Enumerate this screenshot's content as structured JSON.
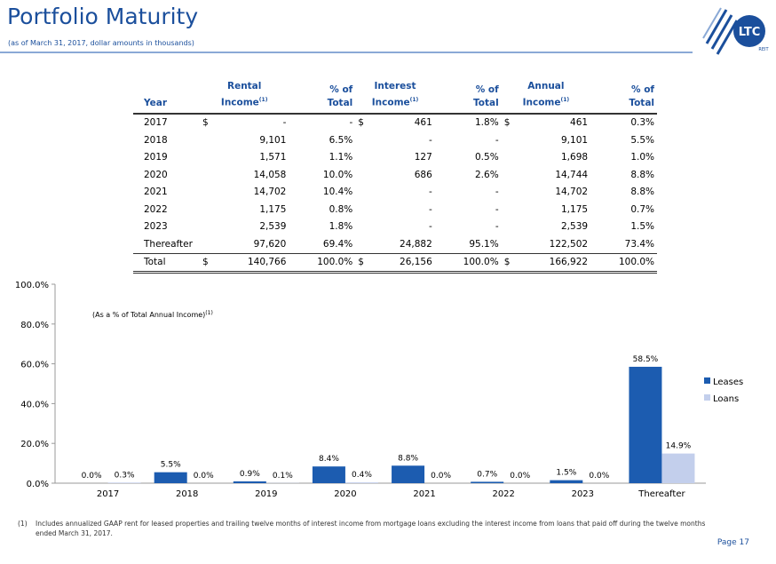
{
  "header": {
    "title": "Portfolio Maturity",
    "subtitle": "(as of March 31, 2017, dollar amounts in thousands)",
    "logo_text": "LTC",
    "logo_subtext": "REIT"
  },
  "table": {
    "headers": {
      "year": "Year",
      "rental": "Rental",
      "rental2": "Income",
      "pct": "% of",
      "pct2": "Total",
      "interest": "Interest",
      "interest2": "Income",
      "annual": "Annual",
      "annual2": "Income",
      "sup": "(1)"
    },
    "rows": [
      {
        "year": "2017",
        "rd": "$",
        "rental": "-",
        "rpct": "-",
        "idol": "$",
        "interest": "461",
        "ipct": "1.8%",
        "adol": "$",
        "annual": "461",
        "apct": "0.3%"
      },
      {
        "year": "2018",
        "rd": "",
        "rental": "9,101",
        "rpct": "6.5%",
        "idol": "",
        "interest": "-",
        "ipct": "-",
        "adol": "",
        "annual": "9,101",
        "apct": "5.5%"
      },
      {
        "year": "2019",
        "rd": "",
        "rental": "1,571",
        "rpct": "1.1%",
        "idol": "",
        "interest": "127",
        "ipct": "0.5%",
        "adol": "",
        "annual": "1,698",
        "apct": "1.0%"
      },
      {
        "year": "2020",
        "rd": "",
        "rental": "14,058",
        "rpct": "10.0%",
        "idol": "",
        "interest": "686",
        "ipct": "2.6%",
        "adol": "",
        "annual": "14,744",
        "apct": "8.8%"
      },
      {
        "year": "2021",
        "rd": "",
        "rental": "14,702",
        "rpct": "10.4%",
        "idol": "",
        "interest": "-",
        "ipct": "-",
        "adol": "",
        "annual": "14,702",
        "apct": "8.8%"
      },
      {
        "year": "2022",
        "rd": "",
        "rental": "1,175",
        "rpct": "0.8%",
        "idol": "",
        "interest": "-",
        "ipct": "-",
        "adol": "",
        "annual": "1,175",
        "apct": "0.7%"
      },
      {
        "year": "2023",
        "rd": "",
        "rental": "2,539",
        "rpct": "1.8%",
        "idol": "",
        "interest": "-",
        "ipct": "-",
        "adol": "",
        "annual": "2,539",
        "apct": "1.5%"
      },
      {
        "year": "Thereafter",
        "rd": "",
        "rental": "97,620",
        "rpct": "69.4%",
        "idol": "",
        "interest": "24,882",
        "ipct": "95.1%",
        "adol": "",
        "annual": "122,502",
        "apct": "73.4%"
      }
    ],
    "total": {
      "year": "Total",
      "rd": "$",
      "rental": "140,766",
      "rpct": "100.0%",
      "idol": "$",
      "interest": "26,156",
      "ipct": "100.0%",
      "adol": "$",
      "annual": "166,922",
      "apct": "100.0%"
    }
  },
  "chart_data": {
    "type": "bar",
    "title": "(As a % of Total Annual Income)",
    "title_sup": "(1)",
    "categories": [
      "2017",
      "2018",
      "2019",
      "2020",
      "2021",
      "2022",
      "2023",
      "Thereafter"
    ],
    "series": [
      {
        "name": "Leases",
        "color": "#1c5cb0",
        "values": [
          0.0,
          5.5,
          0.9,
          8.4,
          8.8,
          0.7,
          1.5,
          58.5
        ],
        "labels": [
          "0.0%",
          "5.5%",
          "0.9%",
          "8.4%",
          "8.8%",
          "0.7%",
          "1.5%",
          "58.5%"
        ]
      },
      {
        "name": "Loans",
        "color": "#c3cfec",
        "values": [
          0.3,
          0.0,
          0.1,
          0.4,
          0.0,
          0.0,
          0.0,
          14.9
        ],
        "labels": [
          "0.3%",
          "0.0%",
          "0.1%",
          "0.4%",
          "0.0%",
          "0.0%",
          "0.0%",
          "14.9%"
        ]
      }
    ],
    "ylim": [
      0,
      100
    ],
    "yticks": [
      0,
      20,
      40,
      60,
      80,
      100
    ],
    "ytick_labels": [
      "0.0%",
      "20.0%",
      "40.0%",
      "60.0%",
      "80.0%",
      "100.0%"
    ],
    "legend": "right"
  },
  "footnote": {
    "mark": "(1)",
    "text": "Includes annualized GAAP rent for leased properties and trailing twelve months of interest income from mortgage loans excluding the interest income from loans that paid off during the twelve months ended March 31, 2017."
  },
  "page": "Page 17"
}
